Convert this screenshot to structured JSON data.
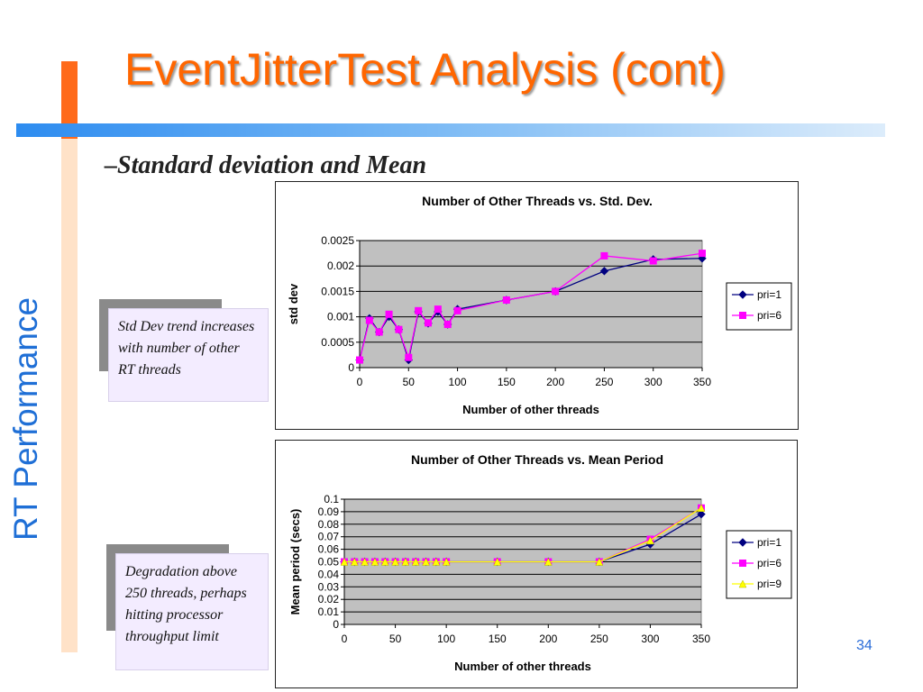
{
  "slide": {
    "title": "EventJitterTest Analysis (cont)",
    "side_title": "RT Performance",
    "subtitle": "–Standard deviation and Mean",
    "page_number": "34",
    "note1": "Std Dev trend increases with number of other RT threads",
    "note2": "Degradation above 250 threads, perhaps hitting processor throughput limit",
    "colors": {
      "title": "#ff6600",
      "side_title": "#1f6fd6",
      "plot_bg": "#c0c0c0",
      "note_bg": "#f3ecff"
    }
  },
  "chart_data": [
    {
      "type": "line",
      "title": "Number of Other Threads vs. Std. Dev.",
      "xlabel": "Number of other threads",
      "ylabel": "std dev",
      "xlim": [
        0,
        350
      ],
      "ylim": [
        0,
        0.0025
      ],
      "x_ticks": [
        "0",
        "50",
        "100",
        "150",
        "200",
        "250",
        "300",
        "350"
      ],
      "y_ticks": [
        "0",
        "0.0005",
        "0.001",
        "0.0015",
        "0.002",
        "0.0025"
      ],
      "grid": true,
      "legend": "right",
      "series": [
        {
          "name": "pri=1",
          "color": "#000080",
          "marker": "diamond",
          "x": [
            0,
            10,
            20,
            30,
            40,
            50,
            60,
            70,
            80,
            90,
            100,
            150,
            200,
            250,
            300,
            350
          ],
          "y": [
            0.00015,
            0.00097,
            0.0007,
            0.001,
            0.00075,
            0.00015,
            0.0011,
            0.00087,
            0.0011,
            0.00085,
            0.00115,
            0.00133,
            0.0015,
            0.0019,
            0.00213,
            0.00215
          ]
        },
        {
          "name": "pri=6",
          "color": "#ff00ff",
          "marker": "square",
          "x": [
            0,
            10,
            20,
            30,
            40,
            50,
            60,
            70,
            80,
            90,
            100,
            150,
            200,
            250,
            300,
            350
          ],
          "y": [
            0.00015,
            0.00093,
            0.0007,
            0.00105,
            0.00075,
            0.0002,
            0.00112,
            0.00088,
            0.00115,
            0.00085,
            0.00112,
            0.00133,
            0.0015,
            0.0022,
            0.0021,
            0.00225
          ]
        }
      ]
    },
    {
      "type": "line",
      "title": "Number of Other Threads vs. Mean Period",
      "xlabel": "Number of other threads",
      "ylabel": "Mean period (secs)",
      "xlim": [
        0,
        350
      ],
      "ylim": [
        0,
        0.1
      ],
      "x_ticks": [
        "0",
        "50",
        "100",
        "150",
        "200",
        "250",
        "300",
        "350"
      ],
      "y_ticks": [
        "0",
        "0.01",
        "0.02",
        "0.03",
        "0.04",
        "0.05",
        "0.06",
        "0.07",
        "0.08",
        "0.09",
        "0.1"
      ],
      "grid": true,
      "legend": "right",
      "series": [
        {
          "name": "pri=1",
          "color": "#000080",
          "marker": "diamond",
          "x": [
            0,
            10,
            20,
            30,
            40,
            50,
            60,
            70,
            80,
            90,
            100,
            150,
            200,
            250,
            300,
            350
          ],
          "y": [
            0.05,
            0.05,
            0.05,
            0.05,
            0.05,
            0.05,
            0.05,
            0.05,
            0.05,
            0.05,
            0.05,
            0.05,
            0.05,
            0.05,
            0.064,
            0.088
          ]
        },
        {
          "name": "pri=6",
          "color": "#ff00ff",
          "marker": "square",
          "x": [
            0,
            10,
            20,
            30,
            40,
            50,
            60,
            70,
            80,
            90,
            100,
            150,
            200,
            250,
            300,
            350
          ],
          "y": [
            0.05,
            0.05,
            0.05,
            0.05,
            0.05,
            0.05,
            0.05,
            0.05,
            0.05,
            0.05,
            0.05,
            0.05,
            0.05,
            0.05,
            0.068,
            0.093
          ]
        },
        {
          "name": "pri=9",
          "color": "#ffff00",
          "marker": "triangle",
          "x": [
            0,
            10,
            20,
            30,
            40,
            50,
            60,
            70,
            80,
            90,
            100,
            150,
            200,
            250,
            300,
            350
          ],
          "y": [
            0.05,
            0.05,
            0.05,
            0.05,
            0.05,
            0.05,
            0.05,
            0.05,
            0.05,
            0.05,
            0.05,
            0.05,
            0.05,
            0.05,
            0.067,
            0.093
          ]
        }
      ]
    }
  ]
}
